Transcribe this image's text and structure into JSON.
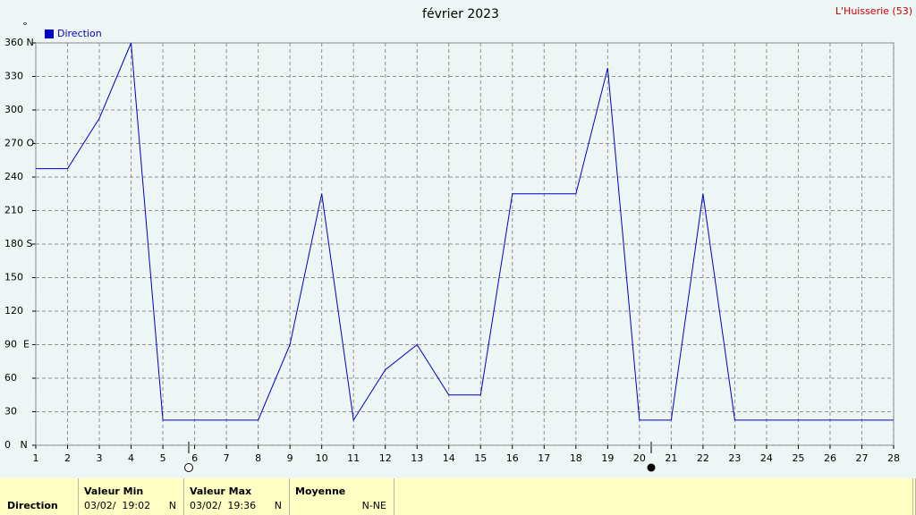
{
  "chart_data": {
    "type": "line",
    "title": "février 2023",
    "location": "L'Huisserie (53)",
    "y_label": "°",
    "x": [
      1,
      2,
      3,
      4,
      5,
      6,
      7,
      8,
      9,
      10,
      11,
      12,
      13,
      14,
      15,
      16,
      17,
      18,
      19,
      20,
      21,
      22,
      23,
      24,
      25,
      26,
      27,
      28
    ],
    "series": [
      {
        "name": "Direction",
        "color": "#0000cc",
        "values": [
          247.5,
          247.5,
          292.5,
          360,
          22.5,
          22.5,
          22.5,
          22.5,
          90,
          225,
          22.5,
          67.5,
          90,
          45,
          45,
          225,
          225,
          225,
          337.5,
          22.5,
          22.5,
          225,
          22.5,
          22.5,
          22.5,
          22.5,
          22.5,
          22.5
        ]
      }
    ],
    "xlim": [
      1,
      28
    ],
    "xticks": [
      1,
      2,
      3,
      4,
      5,
      6,
      7,
      8,
      9,
      10,
      11,
      12,
      13,
      14,
      15,
      16,
      17,
      18,
      19,
      20,
      21,
      22,
      23,
      24,
      25,
      26,
      27,
      28
    ],
    "ylim": [
      0,
      360
    ],
    "yticks": [
      {
        "value": 0,
        "label": "0   N"
      },
      30,
      60,
      {
        "value": 90,
        "label": "90  E"
      },
      120,
      150,
      {
        "value": 180,
        "label": "180 S"
      },
      210,
      240,
      {
        "value": 270,
        "label": "270 O"
      },
      300,
      330,
      {
        "value": 360,
        "label": "360 N"
      }
    ],
    "grid": true
  },
  "table": {
    "row_header": "Direction",
    "columns": [
      {
        "header": "Valeur Min",
        "date": "03/02/  19:02",
        "value": "N"
      },
      {
        "header": "Valeur Max",
        "date": "03/02/  19:36",
        "value": "N"
      },
      {
        "header": "Moyenne",
        "value": "N-NE"
      }
    ]
  }
}
